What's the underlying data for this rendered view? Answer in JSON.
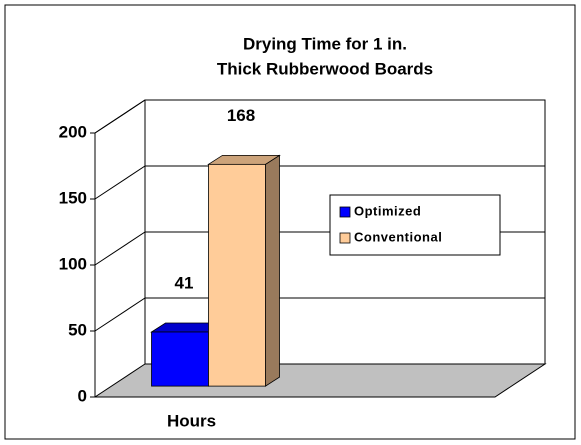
{
  "chart_data": {
    "type": "bar3d",
    "title": [
      "Drying Time for 1 in.",
      "Thick Rubberwood Boards"
    ],
    "categories": [
      "Hours"
    ],
    "series": [
      {
        "name": "Optimized",
        "color": "#0000ff",
        "values": [
          41
        ]
      },
      {
        "name": "Conventional",
        "color": "#ffcc99",
        "values": [
          168
        ]
      }
    ],
    "ylim": [
      0,
      200
    ],
    "yticks": [
      0,
      50,
      100,
      150,
      200
    ],
    "grid": true,
    "legend": "right",
    "data_labels": true
  }
}
